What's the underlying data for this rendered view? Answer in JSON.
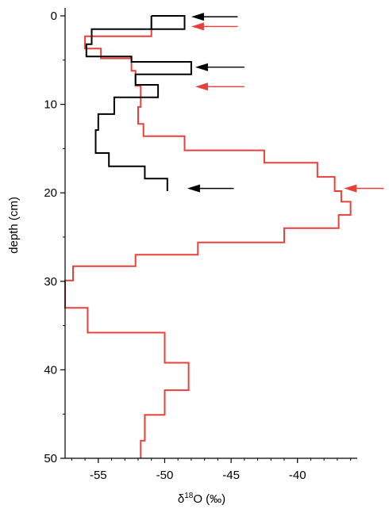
{
  "chart_data": {
    "type": "line",
    "title": "",
    "xlabel": "δ18O (‰)",
    "xlabel_parts": {
      "delta": "δ",
      "superscript": "18",
      "rest": "O (‰)"
    },
    "ylabel": "depth (cm)",
    "xlim": [
      -57.5,
      -35.5
    ],
    "ylim": [
      50,
      -1.5
    ],
    "y_inverted": true,
    "grid": false,
    "x_ticks": [
      -55,
      -50,
      -45,
      -40
    ],
    "y_ticks": [
      0,
      10,
      20,
      30,
      40,
      50
    ],
    "series": [
      {
        "color": "#e8403a",
        "points": [
          [
            -51,
            0.5
          ],
          [
            -51,
            2.3
          ],
          [
            -56,
            2.3
          ],
          [
            -56,
            3.7
          ],
          [
            -54.8,
            3.7
          ],
          [
            -54.8,
            4.8
          ],
          [
            -52.5,
            4.8
          ],
          [
            -52.5,
            6.2
          ],
          [
            -52.2,
            6.2
          ],
          [
            -52.2,
            7.9
          ],
          [
            -51.8,
            7.9
          ],
          [
            -51.8,
            10.3
          ],
          [
            -52,
            10.3
          ],
          [
            -52,
            12.2
          ],
          [
            -51.6,
            12.2
          ],
          [
            -51.6,
            13.6
          ],
          [
            -48.5,
            13.6
          ],
          [
            -48.5,
            15.2
          ],
          [
            -42.5,
            15.2
          ],
          [
            -42.5,
            16.6
          ],
          [
            -38.5,
            16.6
          ],
          [
            -38.5,
            18.2
          ],
          [
            -37.2,
            18.2
          ],
          [
            -37.2,
            19.8
          ],
          [
            -36.7,
            19.8
          ],
          [
            -36.7,
            21.0
          ],
          [
            -36,
            21.0
          ],
          [
            -36,
            22.5
          ],
          [
            -36.9,
            22.5
          ],
          [
            -36.9,
            24.0
          ],
          [
            -41,
            24.0
          ],
          [
            -41,
            25.6
          ],
          [
            -47.5,
            25.6
          ],
          [
            -47.5,
            27.0
          ],
          [
            -52.2,
            27.0
          ],
          [
            -52.2,
            28.3
          ],
          [
            -56.9,
            28.3
          ],
          [
            -56.9,
            29.9
          ],
          [
            -57.5,
            29.9
          ],
          [
            -57.5,
            33.0
          ],
          [
            -55.8,
            33.0
          ],
          [
            -55.8,
            35.8
          ],
          [
            -50,
            35.8
          ],
          [
            -50,
            39.2
          ],
          [
            -48.2,
            39.2
          ],
          [
            -48.2,
            42.3
          ],
          [
            -50,
            42.3
          ],
          [
            -50,
            45.1
          ],
          [
            -51.5,
            45.1
          ],
          [
            -51.5,
            48.0
          ],
          [
            -51.8,
            48.0
          ],
          [
            -51.8,
            50
          ]
        ]
      },
      {
        "color": "#000000",
        "points": [
          [
            -51,
            0
          ],
          [
            -48.5,
            0
          ],
          [
            -48.5,
            1.5
          ],
          [
            -51,
            1.5
          ],
          [
            -51,
            0
          ],
          [
            -51,
            1.5
          ],
          [
            -55.5,
            1.5
          ],
          [
            -55.5,
            3.2
          ],
          [
            -55.9,
            3.2
          ],
          [
            -55.9,
            4.6
          ],
          [
            -52.5,
            4.6
          ],
          [
            -52.5,
            5.2
          ],
          [
            -48,
            5.2
          ],
          [
            -48,
            6.6
          ],
          [
            -52.2,
            6.6
          ],
          [
            -52.2,
            7.8
          ],
          [
            -50.5,
            7.8
          ],
          [
            -50.5,
            9.2
          ],
          [
            -53.8,
            9.2
          ],
          [
            -53.8,
            11.1
          ],
          [
            -55,
            11.1
          ],
          [
            -55,
            12.9
          ],
          [
            -55.2,
            12.9
          ],
          [
            -55.2,
            15.5
          ],
          [
            -54.2,
            15.5
          ],
          [
            -54.2,
            17
          ],
          [
            -51.5,
            17
          ],
          [
            -51.5,
            18.4
          ],
          [
            -49.8,
            18.4
          ],
          [
            -49.8,
            19.8
          ]
        ]
      }
    ],
    "arrows": [
      {
        "color": "#000000",
        "x_from": -44.5,
        "x_to": -48,
        "y": 0.1
      },
      {
        "color": "#e8403a",
        "x_from": -44.5,
        "x_to": -48,
        "y": 1.2
      },
      {
        "color": "#000000",
        "x_from": -44,
        "x_to": -47.7,
        "y": 5.8
      },
      {
        "color": "#e8403a",
        "x_from": -44,
        "x_to": -47.7,
        "y": 8.0
      },
      {
        "color": "#000000",
        "x_from": -44.8,
        "x_to": -48.3,
        "y": 19.5
      },
      {
        "color": "#e8403a",
        "x_from": -33.5,
        "x_to": -36.5,
        "y": 19.5
      }
    ]
  }
}
